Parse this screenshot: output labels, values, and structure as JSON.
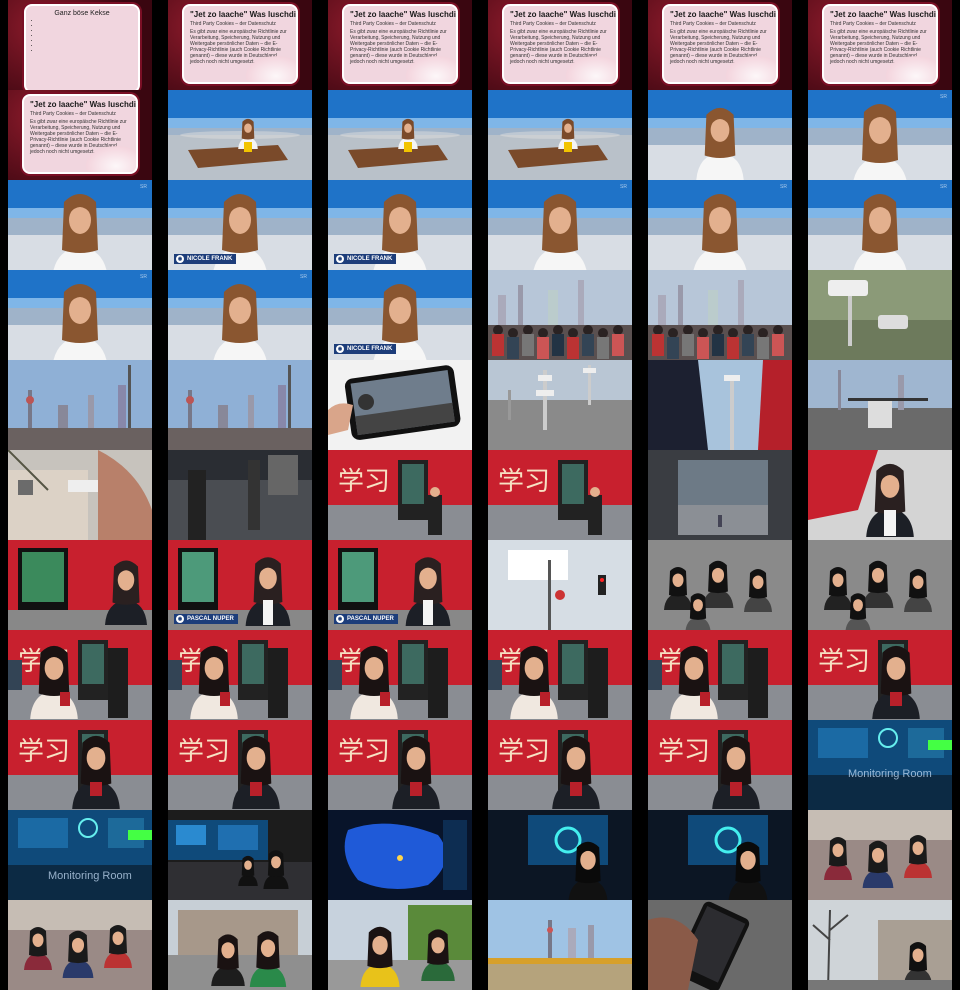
{
  "slides": {
    "left_title": "Ganz böse Kekse",
    "heading": "\"Jet zo laache\"  Was luschdiges",
    "subheading": "Third Party Cookies – der Datenschutz",
    "body": "Es gibt zwar eine europäische Richtlinie zur Verarbeitung, Speicherung, Nutzung und Weitergabe persönlicher Daten – die E-Privacy-Richtlinie (auch Cookie Richtlinie genannt) – diese wurde in Deutschland jedoch noch nicht umgesetzt."
  },
  "lower_thirds": {
    "anchor_name": "NICOLE FRANK",
    "reporter_name": "PASCAL NUPER"
  },
  "overlay_text": {
    "monitoring_room": "Monitoring Room"
  },
  "colors": {
    "studio_blue": "#1c63b8",
    "red_banner": "#c8202e",
    "slide_pink": "#f1d6df",
    "slide_border": "#7a0f25"
  }
}
